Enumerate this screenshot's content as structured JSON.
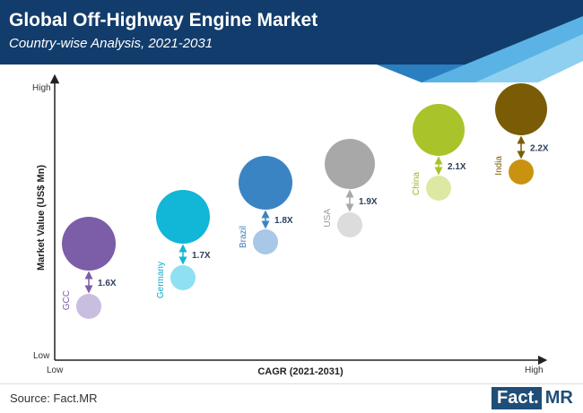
{
  "header": {
    "title": "Global Off-Highway Engine Market",
    "subtitle": "Country-wise Analysis, 2021-2031",
    "colors": {
      "dark": "#123c6b",
      "mid": "#2a7fc1",
      "light": "#5ab3e4",
      "lighter": "#8fd0f0"
    }
  },
  "chart_data": {
    "type": "scatter",
    "xlabel": "CAGR (2021-2031)",
    "ylabel": "Market Value (US$ Mn)",
    "x_axis": {
      "min_label": "Low",
      "max_label": "High"
    },
    "y_axis": {
      "min_label": "Low",
      "max_label": "High"
    },
    "series": [
      {
        "country": "GCC",
        "growth": "1.6X",
        "color_current": "#7b5ea7",
        "color_future": "#c9bde0",
        "label_color": "#7b5ea7"
      },
      {
        "country": "Germany",
        "growth": "1.7X",
        "color_current": "#12b6d6",
        "color_future": "#8fe0f0",
        "label_color": "#12a8c8"
      },
      {
        "country": "Brazil",
        "growth": "1.8X",
        "color_current": "#3b84c4",
        "color_future": "#a9c7e6",
        "label_color": "#3b7bbf"
      },
      {
        "country": "USA",
        "growth": "1.9X",
        "color_current": "#a8a8a8",
        "color_future": "#dcdcdc",
        "label_color": "#9b9b9b"
      },
      {
        "country": "China",
        "growth": "2.1X",
        "color_current": "#a9c42a",
        "color_future": "#dde9a2",
        "label_color": "#9ab52a"
      },
      {
        "country": "India",
        "growth": "2.2X",
        "color_current": "#7a5c06",
        "color_future": "#c9930f",
        "label_color": "#7a5c06"
      }
    ]
  },
  "footer": {
    "source": "Source: Fact.MR",
    "logo": {
      "part1": "Fact.",
      "part2": "MR"
    }
  }
}
